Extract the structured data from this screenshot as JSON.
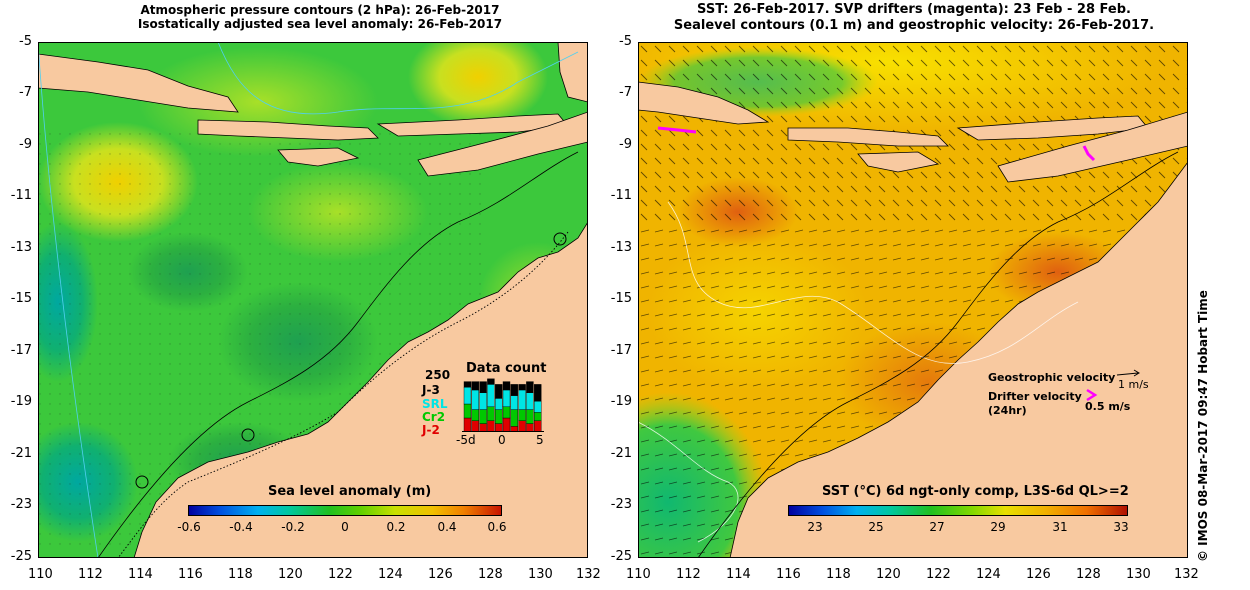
{
  "left_panel": {
    "title_line1": "Atmospheric pressure contours (2 hPa): 26-Feb-2017",
    "title_line2": "Isostatically adjusted sea level anomaly: 26-Feb-2017",
    "colorbar": {
      "title": "Sea level anomaly (m)",
      "ticks": [
        "-0.6",
        "-0.4",
        "-0.2",
        "0",
        "0.2",
        "0.4",
        "0.6"
      ]
    },
    "data_count": {
      "title": "Data count",
      "max_label": "250",
      "missions": [
        {
          "label": "J-3",
          "color": "#000000"
        },
        {
          "label": "SRL",
          "color": "#00e5e5"
        },
        {
          "label": "Cr2",
          "color": "#00c800"
        },
        {
          "label": "J-2",
          "color": "#e00000"
        }
      ],
      "axis_labels": [
        "-5d",
        "0",
        "5"
      ],
      "bars": [
        {
          "j3": 0.1,
          "srl": 0.3,
          "cr2": 0.25,
          "j2": 0.25
        },
        {
          "j3": 0.15,
          "srl": 0.35,
          "cr2": 0.2,
          "j2": 0.2
        },
        {
          "j3": 0.2,
          "srl": 0.3,
          "cr2": 0.25,
          "j2": 0.15
        },
        {
          "j3": 0.1,
          "srl": 0.4,
          "cr2": 0.25,
          "j2": 0.2
        },
        {
          "j3": 0.25,
          "srl": 0.2,
          "cr2": 0.25,
          "j2": 0.15
        },
        {
          "j3": 0.15,
          "srl": 0.3,
          "cr2": 0.2,
          "j2": 0.25
        },
        {
          "j3": 0.2,
          "srl": 0.25,
          "cr2": 0.3,
          "j2": 0.1
        },
        {
          "j3": 0.1,
          "srl": 0.35,
          "cr2": 0.2,
          "j2": 0.2
        },
        {
          "j3": 0.2,
          "srl": 0.3,
          "cr2": 0.25,
          "j2": 0.15
        },
        {
          "j3": 0.3,
          "srl": 0.2,
          "cr2": 0.15,
          "j2": 0.2
        }
      ]
    }
  },
  "right_panel": {
    "title_line1": "SST: 26-Feb-2017. SVP drifters (magenta): 23 Feb - 28 Feb.",
    "title_line2": "Sealevel contours (0.1 m) and geostrophic velocity: 26-Feb-2017.",
    "colorbar": {
      "title": "SST (°C) 6d ngt-only comp, L3S-6d QL>=2",
      "ticks": [
        "23",
        "25",
        "27",
        "29",
        "31",
        "33"
      ]
    },
    "velocity_legend": {
      "geostrophic_label": "Geostrophic velocity",
      "geostrophic_scale": "1 m/s",
      "drifter_label": "Drifter velocity",
      "drifter_sub": "(24hr)",
      "drifter_scale": "0.5 m/s"
    }
  },
  "axes": {
    "x_ticks": [
      "110",
      "112",
      "114",
      "116",
      "118",
      "120",
      "122",
      "124",
      "126",
      "128",
      "130",
      "132"
    ],
    "y_ticks": [
      "-5",
      "-7",
      "-9",
      "-11",
      "-13",
      "-15",
      "-17",
      "-19",
      "-21",
      "-23",
      "-25"
    ]
  },
  "copyright": "© IMOS 08-Mar-2017 09:47 Hobart Time",
  "colors": {
    "land": "#f8c9a0",
    "sla_ocean": "#3cc83c",
    "sst_ocean": "#f0b400",
    "coast": "#000000",
    "drifter": "#ff00ff"
  }
}
